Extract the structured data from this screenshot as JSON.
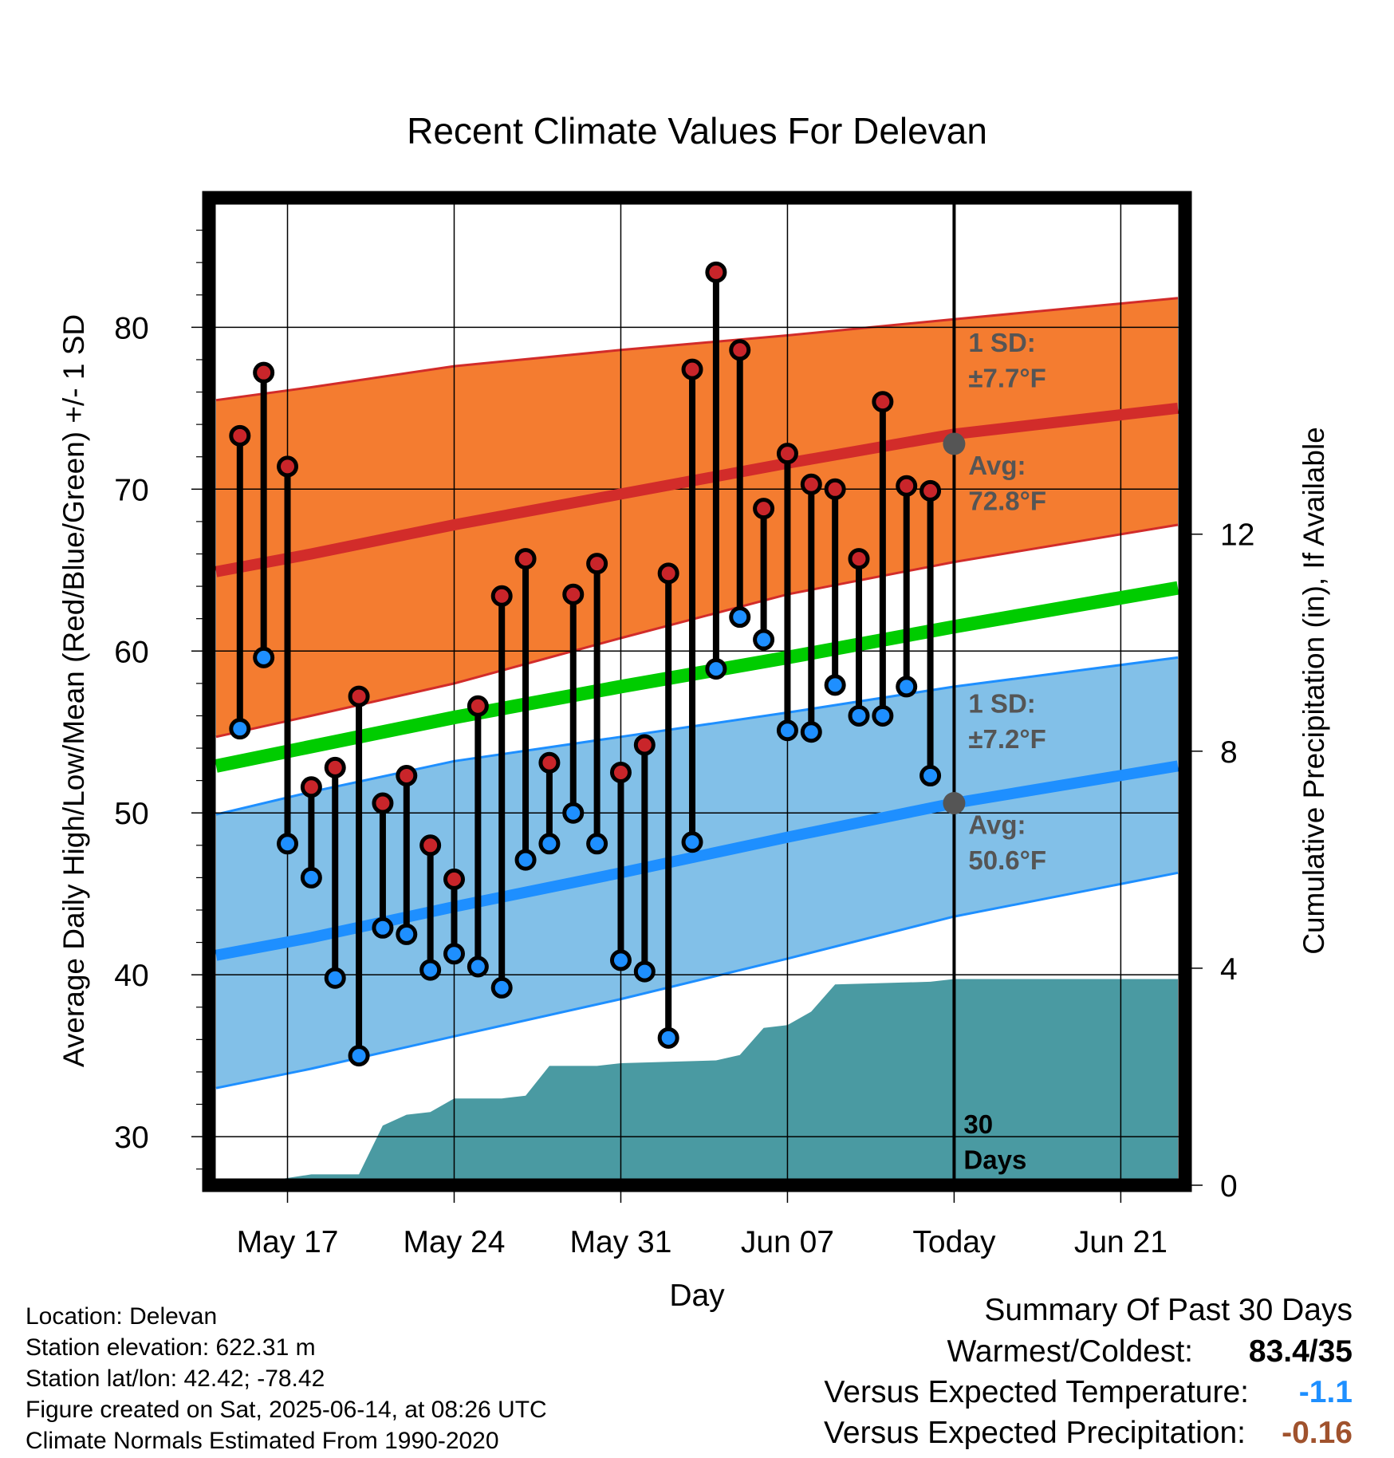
{
  "chart_data": {
    "type": "line",
    "title": "Recent Climate Values For Delevan",
    "xlabel": "Day",
    "ylabel": "Average Daily High/Low/Mean (Red/Blue/Green) +/- 1 SD",
    "y2label": "Cumulative Precipitation (in), If Available",
    "ylim": [
      27,
      88
    ],
    "y_ticks": [
      30,
      40,
      50,
      60,
      70,
      80
    ],
    "y2lim": [
      0,
      18.2
    ],
    "y2_ticks": [
      0,
      4,
      8,
      12
    ],
    "x_ticks": [
      {
        "day": 17,
        "label": "May 17"
      },
      {
        "day": 24,
        "label": "May 24"
      },
      {
        "day": 31,
        "label": "May 31"
      },
      {
        "day": 38,
        "label": "Jun 07"
      },
      {
        "day": 45,
        "label": "Today"
      },
      {
        "day": 52,
        "label": "Jun 21"
      }
    ],
    "xlim": [
      13.7,
      54.7
    ],
    "today_day": 45,
    "grid": true,
    "normals": {
      "high_avg": [
        [
          14.0,
          64.9
        ],
        [
          18,
          66.0
        ],
        [
          24,
          67.8
        ],
        [
          31,
          69.7
        ],
        [
          38,
          71.6
        ],
        [
          45,
          73.4
        ],
        [
          54.4,
          75.0
        ]
      ],
      "high_upper": [
        [
          14.0,
          75.5
        ],
        [
          18,
          76.3
        ],
        [
          24,
          77.6
        ],
        [
          31,
          78.6
        ],
        [
          38,
          79.5
        ],
        [
          45,
          80.5
        ],
        [
          54.4,
          81.8
        ]
      ],
      "high_lower": [
        [
          14.0,
          54.7
        ],
        [
          18,
          56.0
        ],
        [
          24,
          58.0
        ],
        [
          31,
          60.8
        ],
        [
          38,
          63.5
        ],
        [
          45,
          65.5
        ],
        [
          54.4,
          67.8
        ]
      ],
      "mean_avg": [
        [
          14.0,
          52.9
        ],
        [
          24,
          55.9
        ],
        [
          31,
          57.8
        ],
        [
          38,
          59.6
        ],
        [
          45,
          61.5
        ],
        [
          54.4,
          63.9
        ]
      ],
      "low_avg": [
        [
          14.0,
          41.2
        ],
        [
          18,
          42.3
        ],
        [
          24,
          44.2
        ],
        [
          31,
          46.3
        ],
        [
          38,
          48.5
        ],
        [
          45,
          50.6
        ],
        [
          54.4,
          52.9
        ]
      ],
      "low_upper": [
        [
          14.0,
          49.9
        ],
        [
          18,
          51.3
        ],
        [
          24,
          53.2
        ],
        [
          31,
          54.7
        ],
        [
          38,
          56.2
        ],
        [
          45,
          57.8
        ],
        [
          54.4,
          59.6
        ]
      ],
      "low_lower": [
        [
          14.0,
          33.0
        ],
        [
          18,
          34.2
        ],
        [
          24,
          36.2
        ],
        [
          31,
          38.5
        ],
        [
          38,
          41.0
        ],
        [
          45,
          43.6
        ],
        [
          54.4,
          46.3
        ]
      ]
    },
    "series": [
      {
        "name": "High",
        "color": "#c9252a",
        "values": [
          73.3,
          77.2,
          71.4,
          51.6,
          52.8,
          57.2,
          50.6,
          52.3,
          48.0,
          45.9,
          56.6,
          63.4,
          65.7,
          53.1,
          63.5,
          65.4,
          52.5,
          54.2,
          64.8,
          77.4,
          83.4,
          78.6,
          68.8,
          72.2,
          70.3,
          70.0,
          65.7,
          75.4,
          70.2,
          69.9
        ]
      },
      {
        "name": "Low",
        "color": "#1e8fff",
        "values": [
          55.2,
          59.6,
          48.1,
          46.0,
          39.8,
          35.0,
          42.9,
          42.5,
          40.3,
          41.3,
          40.5,
          39.2,
          47.1,
          48.1,
          50.0,
          48.1,
          40.9,
          40.2,
          36.1,
          48.2,
          58.9,
          62.1,
          60.7,
          55.1,
          55.0,
          57.9,
          56.0,
          56.0,
          57.8,
          52.3
        ]
      }
    ],
    "days": [
      15,
      16,
      17,
      18,
      19,
      20,
      21,
      22,
      23,
      24,
      25,
      26,
      27,
      28,
      29,
      30,
      31,
      32,
      33,
      34,
      35,
      36,
      37,
      38,
      39,
      40,
      41,
      42,
      43,
      44
    ],
    "precip_cumulative": [
      [
        15.0,
        0.0
      ],
      [
        16.5,
        0.1
      ],
      [
        18.0,
        0.2
      ],
      [
        20.0,
        0.2
      ],
      [
        21.0,
        1.1
      ],
      [
        22.0,
        1.3
      ],
      [
        23.0,
        1.35
      ],
      [
        24.0,
        1.6
      ],
      [
        26.0,
        1.6
      ],
      [
        27.0,
        1.65
      ],
      [
        28.0,
        2.2
      ],
      [
        30.0,
        2.2
      ],
      [
        31.0,
        2.25
      ],
      [
        35.0,
        2.3
      ],
      [
        36.0,
        2.4
      ],
      [
        37.0,
        2.9
      ],
      [
        38.0,
        2.95
      ],
      [
        39.0,
        3.2
      ],
      [
        40.0,
        3.7
      ],
      [
        44.0,
        3.75
      ],
      [
        45.0,
        3.8
      ],
      [
        54.4,
        3.8
      ]
    ],
    "annotations": {
      "high_sd": "1 SD:",
      "high_sd_val": "±7.7°F",
      "high_avg_label": "Avg:",
      "high_avg_val": "72.8°F",
      "low_sd": "1 SD:",
      "low_sd_val": "±7.2°F",
      "low_avg_label": "Avg:",
      "low_avg_val": "50.6°F",
      "window_1": "30",
      "window_2": "Days"
    },
    "colors": {
      "high_band": "#f47c30",
      "high_line": "#d22c2a",
      "mean_line": "#00cc00",
      "low_band": "#82c0e8",
      "low_line": "#1e8fff",
      "precip": "#4a9aa2",
      "annotation": "#555555"
    }
  },
  "info": {
    "location": "Location: Delevan",
    "elevation": "Station elevation: 622.31 m",
    "latlon": "Station lat/lon: 42.42; -78.42",
    "created": "Figure created on Sat, 2025-06-14, at 08:26 UTC",
    "normals": "Climate Normals Estimated From 1990-2020"
  },
  "summary": {
    "heading": "Summary Of Past 30 Days",
    "warm_cold_label": "Warmest/Coldest:",
    "warm_cold_value": "83.4/35",
    "temp_label": "Versus Expected Temperature:",
    "temp_value": "-1.1",
    "temp_color": "#1e8fff",
    "precip_label": "Versus Expected Precipitation:",
    "precip_value": "-0.16",
    "precip_color": "#a0522d"
  }
}
